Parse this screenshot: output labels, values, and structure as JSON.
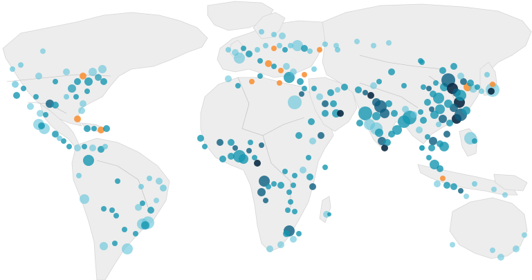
{
  "map": {
    "colors": {
      "background": "#ffffff",
      "land": "#ededed",
      "border": "#b9b9b9",
      "bubble_light": "#5fc3d9",
      "bubble_mid": "#1596b0",
      "bubble_dark": "#0a5e80",
      "bubble_darkest": "#0b2a44",
      "bubble_orange": "#f7923a"
    },
    "category_colors": {
      "light": "#5fc3d9",
      "mid": "#1596b0",
      "dark": "#0a5e80",
      "darkest": "#0b2a44",
      "orange": "#f7923a"
    },
    "bubble_count_note": ""
  }
}
